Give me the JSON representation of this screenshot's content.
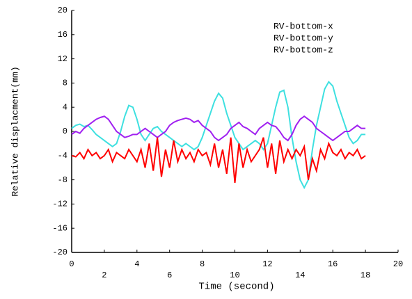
{
  "chart_data": {
    "type": "line",
    "xlabel": "Time (second)",
    "ylabel": "Relative displacment(mm)",
    "xlim": [
      0,
      20
    ],
    "xticks": [
      0,
      2,
      4,
      6,
      8,
      10,
      12,
      14,
      16,
      18,
      20
    ],
    "ylim": [
      -20,
      20
    ],
    "yticks": [
      -20,
      -16,
      -12,
      -8,
      -4,
      0,
      4,
      8,
      12,
      16,
      20
    ],
    "legend": "upper right",
    "x": [
      0,
      0.25,
      0.5,
      0.75,
      1,
      1.25,
      1.5,
      1.75,
      2,
      2.25,
      2.5,
      2.75,
      3,
      3.25,
      3.5,
      3.75,
      4,
      4.25,
      4.5,
      4.75,
      5,
      5.25,
      5.5,
      5.75,
      6,
      6.25,
      6.5,
      6.75,
      7,
      7.25,
      7.5,
      7.75,
      8,
      8.25,
      8.5,
      8.75,
      9,
      9.25,
      9.5,
      9.75,
      10,
      10.25,
      10.5,
      10.75,
      11,
      11.25,
      11.5,
      11.75,
      12,
      12.25,
      12.5,
      12.75,
      13,
      13.25,
      13.5,
      13.75,
      14,
      14.25,
      14.5,
      14.75,
      15,
      15.25,
      15.5,
      15.75,
      16,
      16.25,
      16.5,
      16.75,
      17,
      17.25,
      17.5,
      17.75,
      18
    ],
    "series": [
      {
        "name": "RV-bottom-x",
        "color": "#3ee0e0",
        "values": [
          0.5,
          1,
          1.2,
          0.8,
          1,
          0.3,
          -0.5,
          -1,
          -1.5,
          -2,
          -2.5,
          -2,
          0,
          2.5,
          4.3,
          4,
          2,
          -0.5,
          -1.5,
          -0.5,
          0.5,
          0.8,
          0,
          -0.5,
          -1,
          -1.5,
          -2,
          -2.5,
          -2,
          -2.5,
          -3,
          -2.5,
          -1,
          1,
          3,
          5,
          6.3,
          5.5,
          3,
          1,
          -1,
          -2,
          -3,
          -2.5,
          -2,
          -1.5,
          -2,
          -3,
          -2,
          1,
          4,
          6.5,
          6.8,
          4,
          -1,
          -5,
          -8,
          -9.3,
          -8,
          -3,
          1,
          4,
          7,
          8.2,
          7.5,
          5,
          3,
          1,
          -1,
          -2,
          -1.5,
          -0.5,
          -0.5
        ]
      },
      {
        "name": "RV-bottom-y",
        "color": "#a020f0",
        "values": [
          -0.5,
          0,
          -0.3,
          0.5,
          1,
          1.5,
          2,
          2.3,
          2.5,
          2,
          1,
          0,
          -0.5,
          -1,
          -0.8,
          -0.5,
          -0.5,
          0,
          0.5,
          0,
          -0.5,
          -1,
          -0.5,
          0,
          1,
          1.5,
          1.8,
          2,
          2.2,
          2,
          1.5,
          1.8,
          1,
          0.5,
          0,
          -1,
          -1.5,
          -1,
          -0.5,
          0.5,
          1,
          1.5,
          0.8,
          0.5,
          0,
          -0.5,
          0.5,
          1,
          1.5,
          1,
          0.8,
          0,
          -1,
          -1.5,
          -0.5,
          1,
          2,
          2.5,
          2,
          1.5,
          0.5,
          0,
          -0.5,
          -1,
          -1.5,
          -1,
          -0.5,
          0,
          0,
          0.5,
          1,
          0.5,
          0.5
        ]
      },
      {
        "name": "RV-bottom-z",
        "color": "#ff0000",
        "values": [
          -4,
          -4.2,
          -3.5,
          -4.5,
          -3,
          -4,
          -3.5,
          -4.5,
          -4,
          -3,
          -5,
          -3.5,
          -4,
          -4.5,
          -3,
          -4,
          -5,
          -3,
          -6,
          -2,
          -6.5,
          -1,
          -7.5,
          -3,
          -6,
          -1.5,
          -5,
          -3,
          -4.5,
          -3.5,
          -5,
          -3,
          -4,
          -3.5,
          -5.5,
          -2,
          -6,
          -3,
          -7,
          -1,
          -8.5,
          -2,
          -6,
          -3,
          -5,
          -4,
          -3,
          -1,
          -6,
          -2,
          -7,
          -1.5,
          -5,
          -3,
          -4.5,
          -3,
          -4,
          -2.5,
          -8,
          -4.5,
          -6.5,
          -3,
          -4.5,
          -2,
          -3.5,
          -4,
          -3,
          -4.5,
          -3.5,
          -4,
          -3,
          -4.5,
          -4
        ]
      }
    ]
  }
}
